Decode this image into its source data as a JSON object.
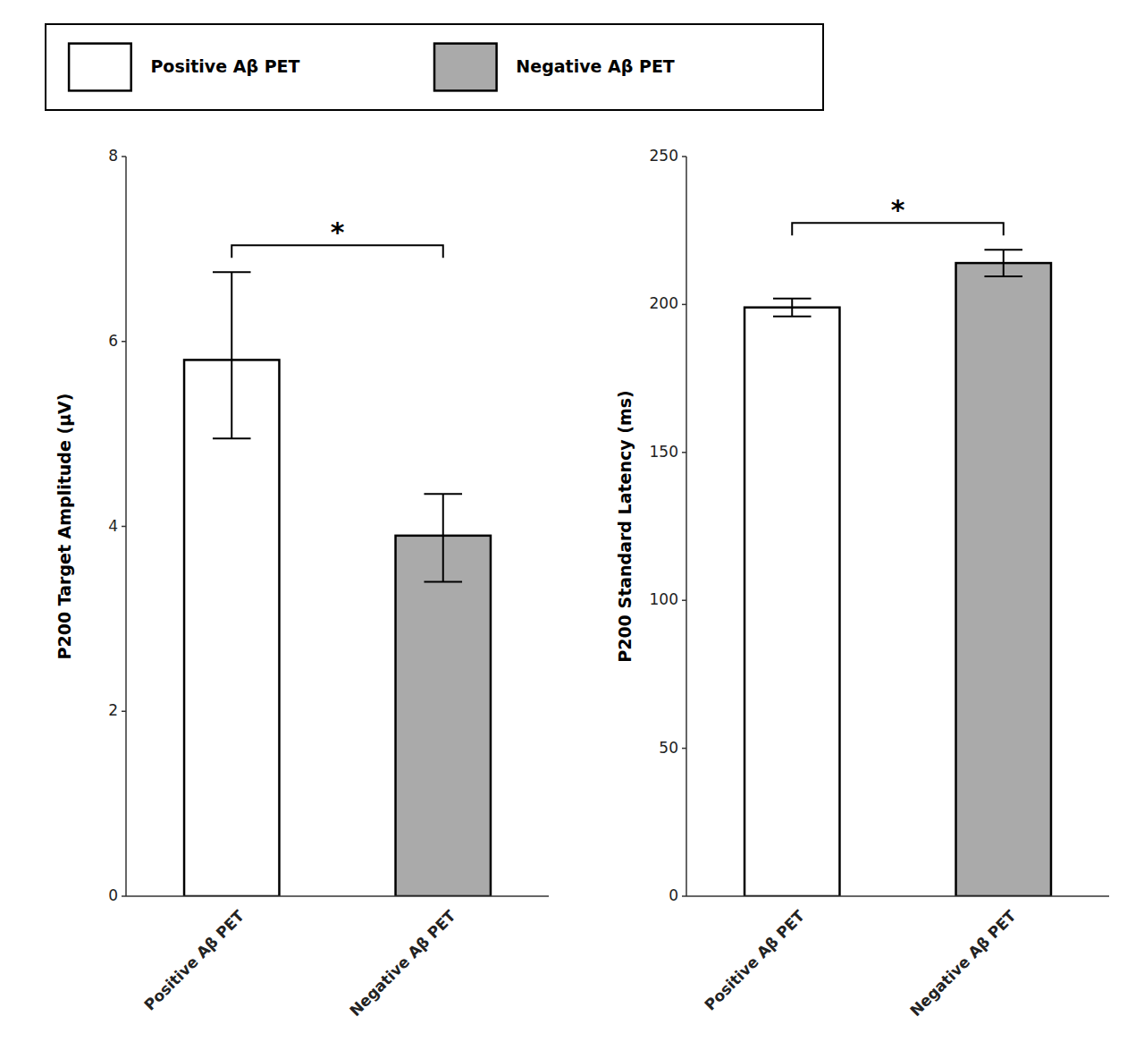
{
  "chart_data": [
    {
      "type": "bar",
      "categories": [
        "Positive Aβ PET",
        "Negative Aβ PET"
      ],
      "values": [
        5.8,
        3.9
      ],
      "error_upper": [
        0.95,
        0.45
      ],
      "error_lower": [
        0.85,
        0.5
      ],
      "colors": [
        "#FFFFFF",
        "#AAAAAA"
      ],
      "ylabel": "P200 Target Amplitude (μV)",
      "ylim": [
        0,
        8
      ],
      "yticks": [
        0,
        2,
        4,
        6,
        8
      ],
      "grid": false,
      "legend": "top",
      "annotations": [
        {
          "text": "*"
        }
      ]
    },
    {
      "type": "bar",
      "categories": [
        "Positive Aβ PET",
        "Negative Aβ PET"
      ],
      "values": [
        199,
        214
      ],
      "error_upper": [
        3.0,
        4.5
      ],
      "error_lower": [
        3.0,
        4.5
      ],
      "colors": [
        "#FFFFFF",
        "#AAAAAA"
      ],
      "ylabel": "P200 Standard Latency (ms)",
      "ylim": [
        0,
        250
      ],
      "yticks": [
        0,
        50,
        100,
        150,
        200,
        250
      ],
      "grid": false,
      "annotations": [
        {
          "text": "*"
        }
      ]
    }
  ]
}
